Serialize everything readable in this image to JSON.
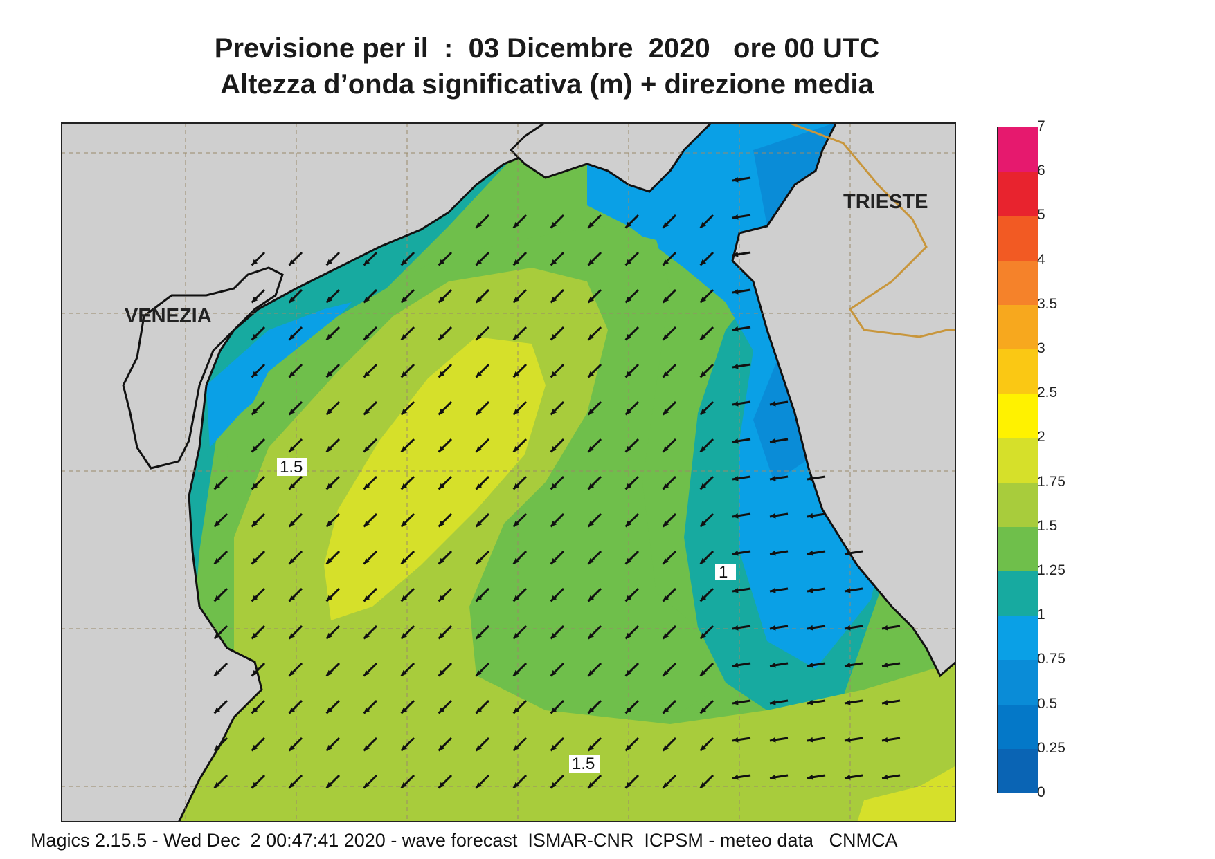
{
  "title": {
    "line1": "Previsione per il  :  03 Dicembre  2020   ore 00 UTC",
    "line2": "Altezza d’onda significativa (m) + direzione media"
  },
  "map": {
    "places": [
      "VENEZIA",
      "TRIESTE"
    ],
    "contour_labels": [
      "1.5",
      "1",
      "1.5"
    ],
    "land_color": "#cfcfcf",
    "graticule_color": "#9a8a6a",
    "border_color": "#c8963c",
    "arrow_direction": "south-west"
  },
  "colorbar": {
    "labels": [
      "7",
      "6",
      "5",
      "4",
      "3.5",
      "3",
      "2.5",
      "2",
      "1.75",
      "1.5",
      "1.25",
      "1",
      "0.75",
      "0.5",
      "0.25",
      "0"
    ],
    "colors": [
      "#e6196e",
      "#e8232e",
      "#f25a23",
      "#f5822a",
      "#f7a81e",
      "#fac814",
      "#fff200",
      "#d6e02a",
      "#a8cc3c",
      "#6fbf4b",
      "#17aaa0",
      "#0aa0e6",
      "#0a8cd7",
      "#0478c8",
      "#0a64b4"
    ]
  },
  "footer": "Magics 2.15.5 - Wed Dec  2 00:47:41 2020 - wave forecast  ISMAR-CNR  ICPSM - meteo data   CNMCA"
}
